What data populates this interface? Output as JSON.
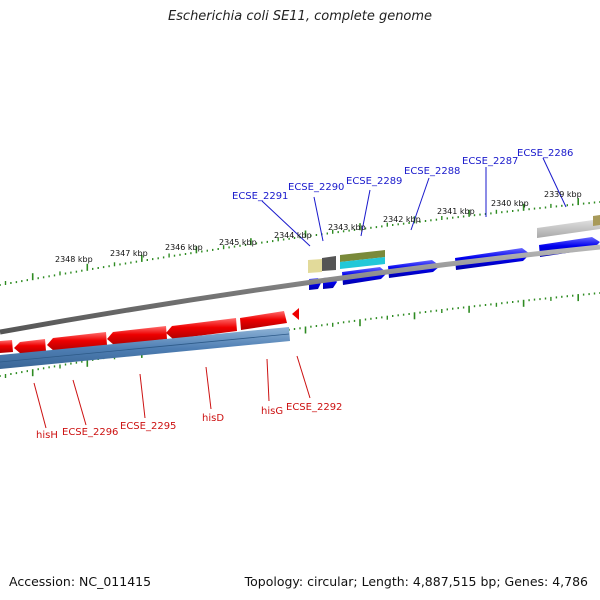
{
  "title": "Escherichia coli SE11, complete genome",
  "accession": "Accession: NC_011415",
  "summary": "Topology: circular; Length: 4,887,515 bp; Genes: 4,786",
  "colors": {
    "forward_label": "#1a1acc",
    "reverse_label": "#cc1111",
    "forward_gene": "#0000ee",
    "reverse_gene": "#ee0000",
    "tick": "#2e8b22",
    "backbone": "#808080"
  },
  "ticks": [
    "2339 kbp",
    "2340 kbp",
    "2341 kbp",
    "2342 kbp",
    "2343 kbp",
    "2344 kbp",
    "2345 kbp",
    "2346 kbp",
    "2347 kbp",
    "2348 kbp"
  ],
  "forward_labels": [
    "ECSE_2286",
    "ECSE_2287",
    "ECSE_2288",
    "ECSE_2289",
    "ECSE_2290",
    "ECSE_2291"
  ],
  "reverse_labels": [
    "ECSE_2292",
    "hisG",
    "hisD",
    "ECSE_2295",
    "ECSE_2296",
    "hisH"
  ]
}
